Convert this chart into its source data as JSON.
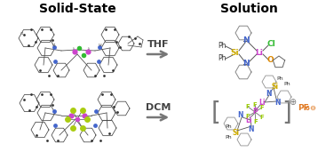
{
  "left_title": "Solid-State",
  "right_title": "Solution",
  "arrow1_label": "THF",
  "arrow2_label": "DCM",
  "bg_color": "#ffffff",
  "title_fontsize": 10,
  "arrow_fontsize": 8,
  "li_color": "#cc44cc",
  "si_color": "#ccaa00",
  "cl_color": "#33bb33",
  "o_color": "#dd8800",
  "n_color": "#4466cc",
  "f_color": "#99cc00",
  "p_color": "#cc44cc",
  "pf6_color": "#e07820",
  "atom_gray": "#333333",
  "bond_gray": "#555555",
  "ring_gray": "#444444",
  "arrow_color": "#777777",
  "bracket_color": "#888888"
}
